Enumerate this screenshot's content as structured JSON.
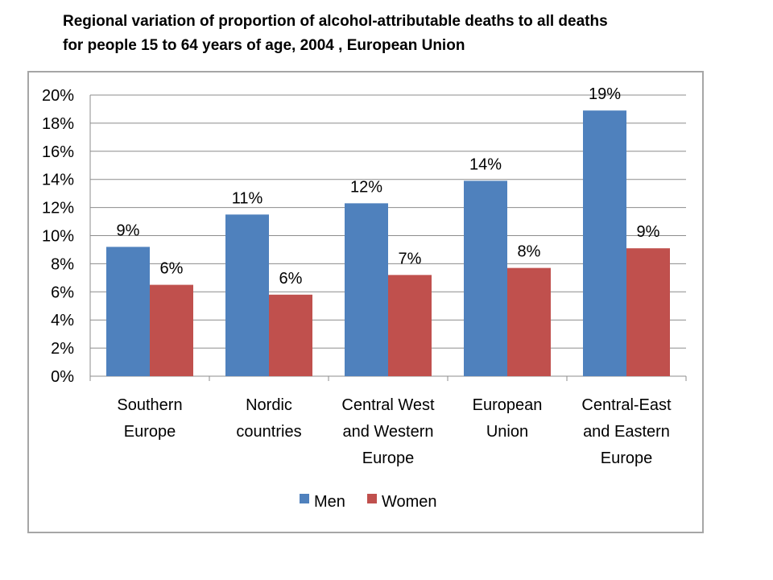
{
  "title_lines": [
    "Regional variation of proportion of alcohol-attributable deaths to all deaths",
    "for people 15 to 64 years of age, 2004 , European Union"
  ],
  "chart_data": {
    "type": "bar",
    "title": "Regional variation of proportion of alcohol-attributable deaths to all deaths for people 15 to 64 years of age, 2004 , European Union",
    "categories": [
      [
        "Southern",
        "Europe"
      ],
      [
        "Nordic",
        "countries"
      ],
      [
        "Central West",
        "and Western",
        "Europe"
      ],
      [
        "European",
        "Union"
      ],
      [
        "Central-East",
        "and Eastern",
        "Europe"
      ]
    ],
    "series": [
      {
        "name": "Men",
        "color": "#4f81bd",
        "values": [
          9.2,
          11.5,
          12.3,
          13.9,
          18.9
        ],
        "labels": [
          "9%",
          "11%",
          "12%",
          "14%",
          "19%"
        ]
      },
      {
        "name": "Women",
        "color": "#c0504d",
        "values": [
          6.5,
          5.8,
          7.2,
          7.7,
          9.1
        ],
        "labels": [
          "6%",
          "6%",
          "7%",
          "8%",
          "9%"
        ]
      }
    ],
    "ylim": [
      0,
      20
    ],
    "yticks": [
      0,
      2,
      4,
      6,
      8,
      10,
      12,
      14,
      16,
      18,
      20
    ],
    "ytick_labels": [
      "0%",
      "2%",
      "4%",
      "6%",
      "8%",
      "10%",
      "12%",
      "14%",
      "16%",
      "18%",
      "20%"
    ],
    "grid": true,
    "legend_position": "bottom"
  }
}
